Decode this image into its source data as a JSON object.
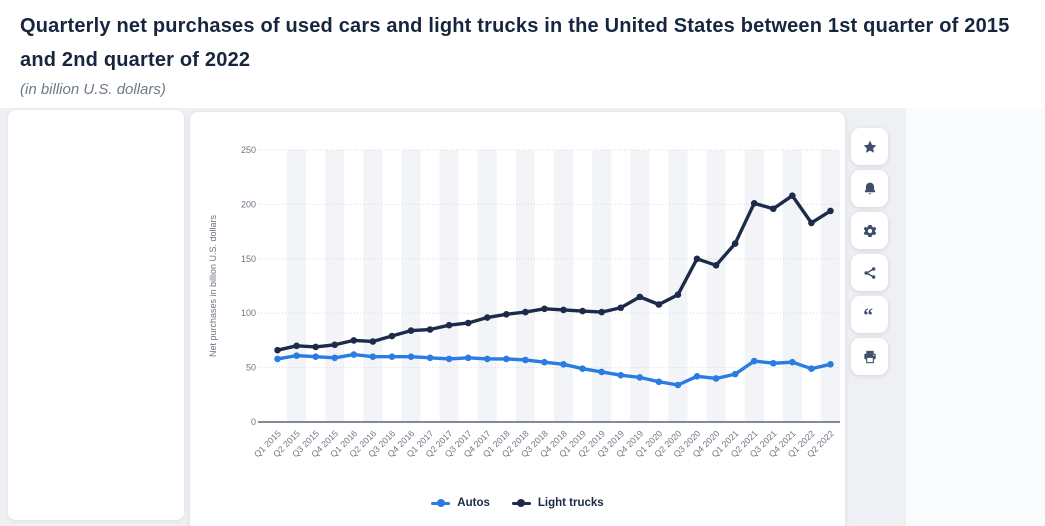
{
  "header": {
    "title": "Quarterly net purchases of used cars and light trucks in the United States between 1st quarter of 2015 and 2nd quarter of 2022",
    "subtitle": "(in billion U.S. dollars)"
  },
  "chart_data": {
    "type": "line",
    "title": "",
    "xlabel": "",
    "ylabel": "Net purchases in billion U.S. dollars",
    "ylim": [
      0,
      250
    ],
    "yticks": [
      0,
      50,
      100,
      150,
      200,
      250
    ],
    "grid": "horizontal dotted gridlines, alternating vertical quarter bands",
    "legend_position": "bottom-center",
    "categories": [
      "Q1 2015",
      "Q2 2015",
      "Q3 2015",
      "Q4 2015",
      "Q1 2016",
      "Q2 2016",
      "Q3 2016",
      "Q4 2016",
      "Q1 2017",
      "Q2 2017",
      "Q3 2017",
      "Q4 2017",
      "Q1 2018",
      "Q2 2018",
      "Q3 2018",
      "Q4 2018",
      "Q1 2019",
      "Q2 2019",
      "Q3 2019",
      "Q4 2019",
      "Q1 2020",
      "Q2 2020",
      "Q3 2020",
      "Q4 2020",
      "Q1 2021",
      "Q2 2021",
      "Q3 2021",
      "Q4 2021",
      "Q1 2022",
      "Q2 2022"
    ],
    "series": [
      {
        "name": "Autos",
        "color": "#2b7ce2",
        "values": [
          58,
          61,
          60,
          59,
          62,
          60,
          60,
          60,
          59,
          58,
          59,
          58,
          58,
          57,
          55,
          53,
          49,
          46,
          43,
          41,
          37,
          34,
          42,
          40,
          44,
          56,
          54,
          55,
          49,
          53
        ]
      },
      {
        "name": "Light trucks",
        "color": "#1c2b49",
        "values": [
          66,
          70,
          69,
          71,
          75,
          74,
          79,
          84,
          85,
          89,
          91,
          96,
          99,
          101,
          104,
          103,
          102,
          101,
          105,
          115,
          108,
          117,
          150,
          144,
          164,
          201,
          196,
          208,
          183,
          194
        ]
      }
    ]
  },
  "toolbar": {
    "buttons": [
      {
        "icon": "star"
      },
      {
        "icon": "bell"
      },
      {
        "icon": "gear"
      },
      {
        "icon": "share"
      },
      {
        "icon": "quote"
      },
      {
        "icon": "printer"
      }
    ]
  },
  "colors": {
    "page_background": "#eef0f4",
    "card_background": "#ffffff",
    "title_text": "#17263e",
    "subtitle_text": "#6e7a89",
    "axis_text": "#6a7480",
    "gridline": "#d6dade",
    "plot_band": "#f3f4f7",
    "icon": "#3f4f68"
  }
}
